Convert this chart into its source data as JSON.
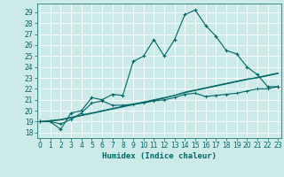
{
  "title": "",
  "xlabel": "Humidex (Indice chaleur)",
  "ylabel": "",
  "bg_color": "#cceae7",
  "line_color": "#006666",
  "grid_color": "#b0d8d4",
  "x_ticks": [
    0,
    1,
    2,
    3,
    4,
    5,
    6,
    7,
    8,
    9,
    10,
    11,
    12,
    13,
    14,
    15,
    16,
    17,
    18,
    19,
    20,
    21,
    22,
    23
  ],
  "y_ticks": [
    18,
    19,
    20,
    21,
    22,
    23,
    24,
    25,
    26,
    27,
    28,
    29
  ],
  "ylim": [
    17.5,
    29.8
  ],
  "xlim": [
    -0.3,
    23.3
  ],
  "series1_y": [
    19.0,
    19.0,
    18.3,
    19.8,
    20.0,
    21.2,
    21.0,
    21.5,
    21.4,
    24.5,
    25.0,
    26.5,
    25.0,
    26.5,
    28.8,
    29.2,
    27.8,
    26.8,
    25.5,
    25.2,
    24.0,
    23.3,
    22.2,
    22.2
  ],
  "series2_y": [
    19.0,
    19.0,
    18.8,
    19.2,
    19.8,
    20.7,
    20.9,
    20.5,
    20.5,
    20.6,
    20.7,
    20.9,
    21.0,
    21.2,
    21.5,
    21.6,
    21.3,
    21.4,
    21.5,
    21.6,
    21.8,
    22.0,
    22.0,
    22.2
  ],
  "series3_y": [
    19.0,
    19.1,
    19.2,
    19.4,
    19.6,
    19.8,
    20.0,
    20.2,
    20.4,
    20.6,
    20.8,
    21.0,
    21.2,
    21.4,
    21.7,
    21.9,
    22.1,
    22.3,
    22.5,
    22.7,
    22.9,
    23.0,
    23.2,
    23.4
  ],
  "series4_y": [
    19.0,
    19.05,
    19.15,
    19.35,
    19.55,
    19.75,
    19.95,
    20.15,
    20.35,
    20.55,
    20.75,
    20.95,
    21.15,
    21.4,
    21.65,
    21.85,
    22.05,
    22.25,
    22.45,
    22.65,
    22.85,
    23.05,
    23.25,
    23.45
  ]
}
